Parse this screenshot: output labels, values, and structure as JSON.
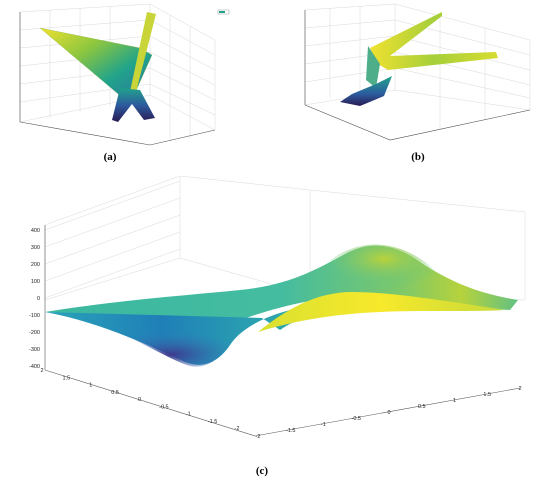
{
  "captions": {
    "a": "(a)",
    "b": "(b)",
    "c": "(c)"
  },
  "chart_data": [
    {
      "panel": "a",
      "type": "surface",
      "colormap": [
        "#3b1f7a",
        "#2c6f9e",
        "#21a38b",
        "#8cc63f",
        "#f0e130"
      ],
      "legend": {
        "entries": [
          ""
        ],
        "placement": "top-right"
      },
      "grid": true
    },
    {
      "panel": "b",
      "type": "surface",
      "colormap": [
        "#3b1f7a",
        "#2c6f9e",
        "#21a38b",
        "#8cc63f",
        "#f0e130"
      ],
      "grid": true
    },
    {
      "panel": "c",
      "type": "surface",
      "colormap": [
        "#3b1f7a",
        "#2c6f9e",
        "#21a38b",
        "#8cc63f",
        "#f0e130"
      ],
      "grid": true,
      "zlim": [
        -400,
        400
      ],
      "zticks": [
        "400",
        "300",
        "200",
        "100",
        "0",
        "-100",
        "-200",
        "-300",
        "-400"
      ],
      "yticks": [
        "2",
        "1.5",
        "1",
        "0.5",
        "0",
        "-0.5",
        "-1",
        "-1.5",
        "-2"
      ],
      "xticks": [
        "-2",
        "-1.5",
        "-1",
        "-0.5",
        "0",
        "0.5",
        "1",
        "1.5",
        "2"
      ]
    }
  ]
}
